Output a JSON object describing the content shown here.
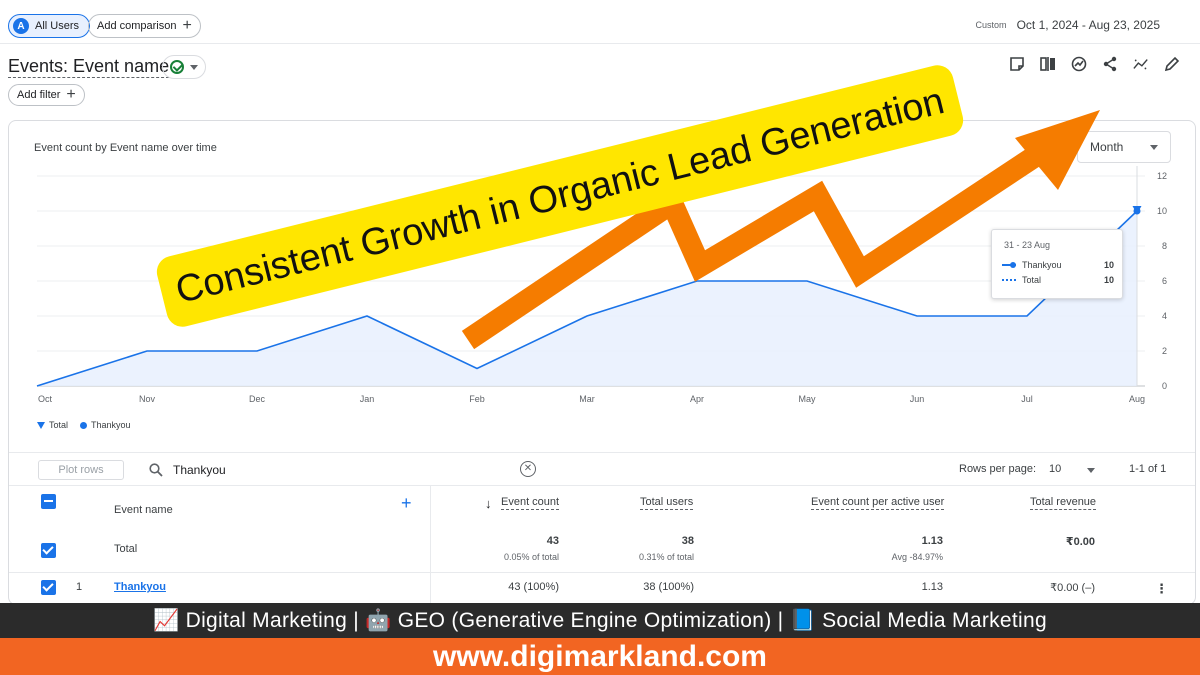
{
  "header": {
    "segment_badge": "A",
    "segment_label": "All Users",
    "add_comparison": "Add comparison",
    "date_tag": "Custom",
    "date_range": "Oct 1, 2024 - Aug 23, 2025"
  },
  "report": {
    "title": "Events: Event name",
    "add_filter": "Add filter",
    "toolbar_icons": [
      "customize-report-icon",
      "compare-icon",
      "insights-icon",
      "share-icon",
      "trend-icon",
      "edit-icon"
    ]
  },
  "chart": {
    "title": "Event count by Event name over time",
    "granularity": "Month",
    "legend": [
      "Total",
      "Thankyou"
    ],
    "tooltip": {
      "date": "31 - 23 Aug",
      "rows": [
        {
          "label": "Thankyou",
          "value": "10"
        },
        {
          "label": "Total",
          "value": "10"
        }
      ]
    }
  },
  "chart_data": {
    "type": "area",
    "title": "Event count by Event name over time",
    "categories": [
      "Oct",
      "Nov",
      "Dec",
      "Jan",
      "Feb",
      "Mar",
      "Apr",
      "May",
      "Jun",
      "Jul",
      "Aug"
    ],
    "y_ticks": [
      0,
      2,
      4,
      6,
      8,
      10,
      12
    ],
    "ylim": [
      0,
      12
    ],
    "series": [
      {
        "name": "Thankyou",
        "values": [
          0,
          2,
          2,
          4,
          1,
          4,
          6,
          6,
          4,
          4,
          10
        ]
      },
      {
        "name": "Total",
        "values": [
          0,
          2,
          2,
          4,
          1,
          4,
          6,
          6,
          4,
          4,
          10
        ]
      }
    ],
    "grid": true,
    "legend_position": "bottom-left"
  },
  "table": {
    "plot_rows": "Plot rows",
    "search_value": "Thankyou",
    "rows_per_page_label": "Rows per page:",
    "rows_per_page": "10",
    "page_info": "1-1 of 1",
    "columns": {
      "name": "Event name",
      "event_count": "Event count",
      "total_users": "Total users",
      "per_user": "Event count per active user",
      "revenue": "Total revenue"
    },
    "total": {
      "label": "Total",
      "event_count": "43",
      "event_count_sub": "0.05% of total",
      "total_users": "38",
      "total_users_sub": "0.31% of total",
      "per_user": "1.13",
      "per_user_sub": "Avg -84.97%",
      "revenue": "₹0.00"
    },
    "rows": [
      {
        "index": "1",
        "name": "Thankyou",
        "event_count": "43 (100%)",
        "total_users": "38 (100%)",
        "per_user": "1.13",
        "revenue": "₹0.00 (–)"
      }
    ]
  },
  "promo": {
    "banner": "Consistent Growth in Organic Lead Generation",
    "arrow_color": "#f57c00",
    "tagline": "📈 Digital Marketing | 🤖 GEO (Generative Engine Optimization) | 📘 Social Media Marketing",
    "url": "www.digimarkland.com"
  }
}
